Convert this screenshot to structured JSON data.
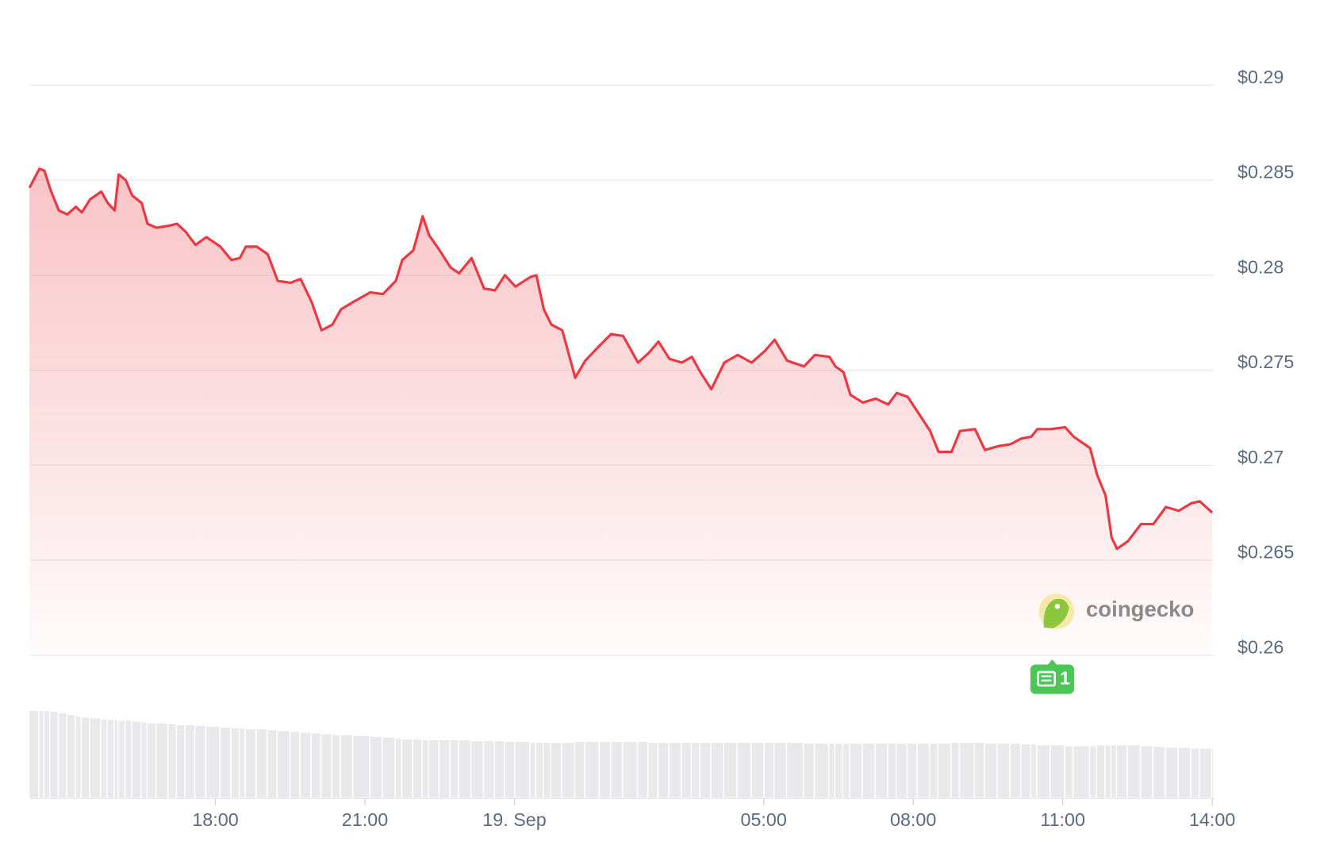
{
  "chart_data": {
    "type": "line",
    "x": [
      -9.73,
      -9.53,
      -9.43,
      -9.31,
      -9.14,
      -8.97,
      -8.8,
      -8.68,
      -8.51,
      -8.29,
      -8.16,
      -8.02,
      -7.94,
      -7.8,
      -7.67,
      -7.48,
      -7.36,
      -7.18,
      -6.94,
      -6.77,
      -6.6,
      -6.4,
      -6.18,
      -5.9,
      -5.68,
      -5.51,
      -5.39,
      -5.17,
      -4.95,
      -4.75,
      -4.49,
      -4.29,
      -4.07,
      -3.87,
      -3.65,
      -3.48,
      -3.23,
      -2.89,
      -2.64,
      -2.38,
      -2.25,
      -2.03,
      -1.84,
      -1.71,
      -1.5,
      -1.28,
      -1.11,
      -0.86,
      -0.61,
      -0.39,
      -0.19,
      0.02,
      0.32,
      0.44,
      0.59,
      0.74,
      0.96,
      1.22,
      1.42,
      1.71,
      1.94,
      2.18,
      2.48,
      2.69,
      2.89,
      3.11,
      3.36,
      3.56,
      3.73,
      3.95,
      4.21,
      4.48,
      4.76,
      5.02,
      5.22,
      5.47,
      5.81,
      6.03,
      6.32,
      6.44,
      6.6,
      6.74,
      6.99,
      7.25,
      7.5,
      7.67,
      7.89,
      8.09,
      8.34,
      8.51,
      8.77,
      8.94,
      9.24,
      9.44,
      9.7,
      9.95,
      10.17,
      10.37,
      10.49,
      10.76,
      11.05,
      11.22,
      11.55,
      11.69,
      11.86,
      11.98,
      12.09,
      12.31,
      12.57,
      12.82,
      13.07,
      13.33,
      13.58,
      13.75,
      14.0
    ],
    "values": [
      0.2846,
      0.2856,
      0.2855,
      0.2845,
      0.2834,
      0.2832,
      0.2836,
      0.2833,
      0.284,
      0.2844,
      0.2838,
      0.2834,
      0.2853,
      0.285,
      0.2842,
      0.2838,
      0.2827,
      0.2825,
      0.2826,
      0.2827,
      0.2823,
      0.2816,
      0.282,
      0.2815,
      0.2808,
      0.2809,
      0.2815,
      0.2815,
      0.2811,
      0.2797,
      0.2796,
      0.2798,
      0.2786,
      0.2771,
      0.2774,
      0.2782,
      0.2786,
      0.2791,
      0.279,
      0.2797,
      0.2808,
      0.2813,
      0.2831,
      0.2821,
      0.2813,
      0.2804,
      0.2801,
      0.2809,
      0.2793,
      0.2792,
      0.28,
      0.2794,
      0.2799,
      0.28,
      0.2782,
      0.2774,
      0.2771,
      0.2746,
      0.2755,
      0.2763,
      0.2769,
      0.2768,
      0.2754,
      0.2759,
      0.2765,
      0.2756,
      0.2754,
      0.2757,
      0.2749,
      0.274,
      0.2754,
      0.2758,
      0.2754,
      0.276,
      0.2766,
      0.2755,
      0.2752,
      0.2758,
      0.2757,
      0.2752,
      0.2749,
      0.2737,
      0.2733,
      0.2735,
      0.2732,
      0.2738,
      0.2736,
      0.2728,
      0.2718,
      0.2707,
      0.2707,
      0.2718,
      0.2719,
      0.2708,
      0.271,
      0.2711,
      0.2714,
      0.2715,
      0.2719,
      0.2719,
      0.272,
      0.2715,
      0.2709,
      0.2695,
      0.2684,
      0.2662,
      0.2656,
      0.266,
      0.2669,
      0.2669,
      0.2678,
      0.2676,
      0.268,
      0.2681,
      0.2675
    ],
    "volumes": [
      103,
      103,
      103,
      102,
      100,
      98,
      96,
      95,
      94,
      93,
      92,
      92,
      91,
      91,
      90,
      89,
      88,
      88,
      87,
      86,
      86,
      85,
      84,
      83,
      82,
      82,
      81,
      81,
      80,
      79,
      78,
      77,
      76,
      75,
      74,
      74,
      73,
      72,
      71,
      70,
      69,
      69,
      68,
      68,
      68,
      68,
      68,
      67,
      67,
      67,
      66,
      66,
      65,
      65,
      65,
      65,
      65,
      66,
      66,
      66,
      66,
      66,
      66,
      65,
      65,
      65,
      65,
      65,
      65,
      65,
      65,
      65,
      65,
      65,
      65,
      65,
      64,
      64,
      64,
      64,
      64,
      64,
      64,
      64,
      64,
      64,
      64,
      64,
      64,
      64,
      65,
      65,
      65,
      64,
      64,
      64,
      63,
      63,
      62,
      62,
      61,
      61,
      61,
      62,
      62,
      62,
      62,
      62,
      61,
      60,
      59,
      59,
      58,
      58,
      58
    ],
    "color": "#ea3943",
    "volume_color": "#e9e9ec",
    "xlim": [
      -9.73,
      14.0
    ],
    "xticks": [
      {
        "value": -6,
        "label": "18:00"
      },
      {
        "value": -3,
        "label": "21:00"
      },
      {
        "value": 0,
        "label": "19. Sep"
      },
      {
        "value": 5,
        "label": "05:00"
      },
      {
        "value": 8,
        "label": "08:00"
      },
      {
        "value": 11,
        "label": "11:00"
      },
      {
        "value": 14,
        "label": "14:00"
      }
    ],
    "ylim": [
      0.26,
      0.29
    ],
    "yticks": [
      {
        "value": 0.26,
        "label": "$0.26"
      },
      {
        "value": 0.265,
        "label": "$0.265"
      },
      {
        "value": 0.27,
        "label": "$0.27"
      },
      {
        "value": 0.275,
        "label": "$0.275"
      },
      {
        "value": 0.28,
        "label": "$0.28"
      },
      {
        "value": 0.285,
        "label": "$0.285"
      },
      {
        "value": 0.29,
        "label": "$0.29"
      }
    ],
    "grid": true,
    "watermark": "coingecko",
    "news_count": "1"
  }
}
